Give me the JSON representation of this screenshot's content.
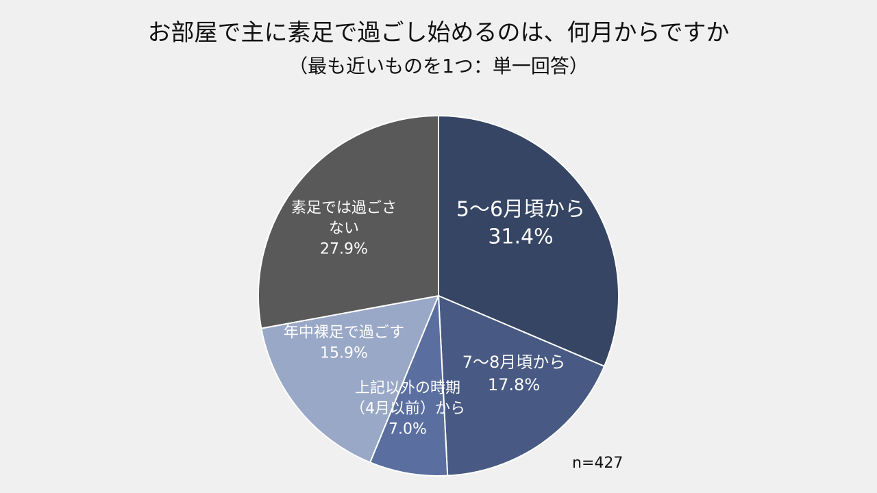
{
  "chart_data": {
    "type": "pie",
    "title": "お部屋で主に素足で過ごし始めるのは、何月からですか",
    "subtitle": "（最も近いものを1つ：単一回答）",
    "note": "n=427",
    "slices": [
      {
        "label_lines": [
          "5～6月頃から"
        ],
        "value": 31.4,
        "value_text": "31.4%",
        "color": "#364563",
        "text_color": "#ffffff"
      },
      {
        "label_lines": [
          "7～8月頃から"
        ],
        "value": 17.8,
        "value_text": "17.8%",
        "color": "#485a83",
        "text_color": "#ffffff"
      },
      {
        "label_lines": [
          "上記以外の時期",
          "（4月以前）から"
        ],
        "value": 7.0,
        "value_text": "7.0%",
        "color": "#5a6f9f",
        "text_color": "#ffffff"
      },
      {
        "label_lines": [
          "年中裸足で過ごす"
        ],
        "value": 15.9,
        "value_text": "15.9%",
        "color": "#9aa8c7",
        "text_color": "#ffffff"
      },
      {
        "label_lines": [
          "素足では過ごさ",
          "ない"
        ],
        "value": 27.9,
        "value_text": "27.9%",
        "color": "#595959",
        "text_color": "#ffffff"
      }
    ],
    "legend": "none",
    "start": "12 o'clock",
    "direction": "clockwise"
  }
}
